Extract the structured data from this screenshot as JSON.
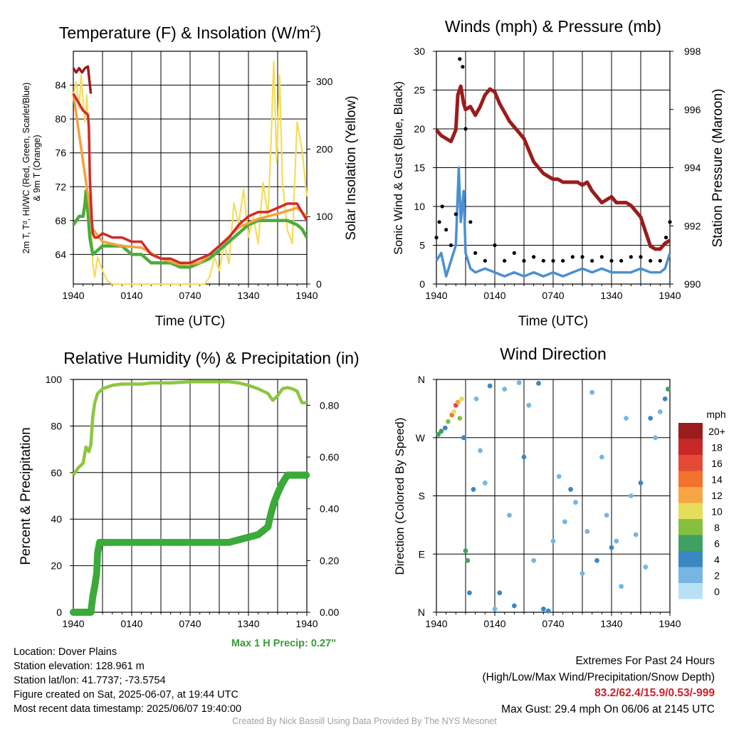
{
  "colors": {
    "temp": "#d12a2a",
    "heat_index": "#4aad3a",
    "wind_chill": "#3a6fd1",
    "temp9": "#f4a23a",
    "insolation": "#f5dc5a",
    "pressure": "#9b1c1c",
    "wind": "#4a90d0",
    "gust": "#000000",
    "rh": "#8cc63f",
    "precip": "#3aaa3a",
    "stat_red": "#c8232c",
    "precip_note": "#3a9a3a",
    "credit": "#a0a0a0"
  },
  "chart_data": [
    {
      "type": "line",
      "title": "Temperature (F) & Insolation (W/m2)",
      "title_parts": {
        "main": "Temperature (F) & Insolation (W/m",
        "sup": "2",
        "end": ")"
      },
      "xlabel": "Time (UTC)",
      "ylabel": "2m T, Td, HI/WC (Red, Green, Scarlet/Blue) & 9m T (Orange)",
      "ylabel_lines": [
        "2m T, Tᵈ, HI/WC (Red, Green, Scarlet/Blue)",
        "& 9m T (Orange)"
      ],
      "y2label": "Solar Insolation (Yellow)",
      "x_ticks": [
        "1940",
        "0140",
        "0740",
        "1340",
        "1940"
      ],
      "xlim_hours": [
        0,
        24
      ],
      "ylim": [
        60.5,
        88
      ],
      "y_ticks": [
        "64",
        "68",
        "72",
        "76",
        "80",
        "84"
      ],
      "y2lim": [
        0,
        345
      ],
      "y2_ticks": [
        "0",
        "100",
        "200",
        "300"
      ],
      "series": [
        {
          "key": "temp",
          "x": [
            0,
            0.5,
            1,
            1.5,
            1.6,
            1.7,
            1.9,
            2,
            2.2,
            2.5,
            3,
            4,
            5,
            6,
            7,
            8,
            9,
            10,
            11,
            12,
            13,
            14,
            15,
            16,
            17,
            18,
            19,
            20,
            21,
            22,
            23,
            24
          ],
          "y": [
            83,
            82,
            81,
            80.5,
            79,
            73,
            68,
            66.5,
            66,
            66,
            66.5,
            66,
            66,
            65.5,
            65.5,
            64,
            63.5,
            63.5,
            63,
            63,
            63.5,
            64,
            65,
            66,
            67.5,
            68.5,
            69,
            69,
            69.5,
            70,
            70,
            68
          ]
        },
        {
          "key": "temp_early",
          "x": [
            0,
            0.3,
            0.6,
            0.9,
            1.2,
            1.5,
            1.8
          ],
          "y": [
            86,
            85.5,
            86,
            85.5,
            86,
            86.2,
            83
          ]
        },
        {
          "key": "temp9",
          "x": [
            0,
            2,
            3,
            5,
            7,
            9,
            11,
            13,
            15,
            17,
            19,
            21,
            23,
            24
          ],
          "y": [
            83,
            67,
            65.5,
            65,
            64.8,
            63.5,
            62.8,
            63,
            65,
            67.2,
            68.2,
            68.8,
            69.5,
            68.5
          ]
        },
        {
          "key": "heat_index",
          "x": [
            0,
            0.3,
            0.6,
            1,
            1.2,
            1.3,
            1.5,
            1.7,
            2,
            2.5,
            3,
            4,
            5,
            6,
            7,
            8,
            9,
            10,
            11,
            12,
            13,
            14,
            15,
            16,
            17,
            18,
            19,
            20,
            21,
            22,
            23,
            23.5,
            24
          ],
          "y": [
            67.5,
            68,
            68.5,
            68.5,
            70,
            71.5,
            69,
            66,
            64,
            64.5,
            65,
            65,
            65,
            64,
            64,
            63,
            63,
            63,
            62.5,
            62.5,
            63,
            63.5,
            64.5,
            65.5,
            66.5,
            67.5,
            68,
            68,
            68,
            68,
            67.5,
            67,
            66
          ]
        },
        {
          "key": "insolation",
          "x": [
            0,
            0.3,
            0.6,
            0.8,
            1,
            1.2,
            1.4,
            1.6,
            1.8,
            2,
            2.2,
            2.5,
            3,
            3.5,
            4,
            5,
            6,
            8,
            10,
            12,
            13.5,
            14,
            14.5,
            15,
            15.5,
            16,
            16.5,
            17,
            17.5,
            18,
            18.5,
            19,
            19.5,
            20,
            20.3,
            20.6,
            20.9,
            21.2,
            21.5,
            22,
            22.5,
            23,
            23.5,
            24
          ],
          "y": [
            280,
            300,
            260,
            310,
            270,
            240,
            280,
            200,
            120,
            30,
            10,
            40,
            20,
            5,
            0,
            0,
            0,
            0,
            0,
            0,
            0,
            10,
            40,
            20,
            60,
            30,
            120,
            90,
            140,
            70,
            100,
            60,
            150,
            100,
            200,
            330,
            180,
            310,
            150,
            80,
            60,
            240,
            200,
            130
          ]
        }
      ]
    },
    {
      "type": "line",
      "title": "Winds (mph) & Pressure (mb)",
      "xlabel": "Time (UTC)",
      "ylabel": "Sonic Wind & Gust (Blue, Black)",
      "y2label": "Station Pressure (Maroon)",
      "x_ticks": [
        "1940",
        "0140",
        "0740",
        "1340",
        "1940"
      ],
      "xlim_hours": [
        0,
        24
      ],
      "ylim": [
        0,
        30
      ],
      "y_ticks": [
        "0",
        "5",
        "10",
        "15",
        "20",
        "25",
        "30"
      ],
      "y2lim": [
        990,
        998
      ],
      "y2_ticks": [
        "990",
        "992",
        "994",
        "996",
        "998"
      ],
      "series": [
        {
          "key": "pressure",
          "x": [
            0,
            0.5,
            1,
            1.5,
            2,
            2.2,
            2.5,
            2.8,
            3,
            3.5,
            4,
            4.5,
            5,
            5.5,
            6,
            6.5,
            7,
            7.5,
            8,
            8.5,
            9,
            9.5,
            10,
            10.5,
            11,
            11.5,
            12,
            12.5,
            13,
            13.5,
            14,
            14.5,
            15,
            15.5,
            16,
            16.5,
            17,
            17.5,
            18,
            18.5,
            19,
            19.5,
            20,
            20.5,
            21,
            21.5,
            22,
            22.5,
            23,
            23.5,
            24
          ],
          "y": [
            995.3,
            995.1,
            995.0,
            994.9,
            995.3,
            996.5,
            996.8,
            996.2,
            996.0,
            996.1,
            995.8,
            996.1,
            996.5,
            996.7,
            996.6,
            996.2,
            995.9,
            995.6,
            995.4,
            995.2,
            995.0,
            994.6,
            994.2,
            994.0,
            993.8,
            993.7,
            993.6,
            993.6,
            993.5,
            993.5,
            993.5,
            993.5,
            993.4,
            993.5,
            993.2,
            993.0,
            992.8,
            992.9,
            993.0,
            992.8,
            992.8,
            992.8,
            992.7,
            992.5,
            992.3,
            991.8,
            991.3,
            991.2,
            991.2,
            991.4,
            991.5
          ]
        },
        {
          "key": "wind",
          "x": [
            0,
            0.5,
            1,
            1.5,
            2,
            2.3,
            2.5,
            2.8,
            3,
            3.5,
            4,
            5,
            6,
            7,
            8,
            9,
            10,
            11,
            12,
            13,
            14,
            15,
            16,
            17,
            18,
            19,
            20,
            21,
            22,
            23,
            23.5,
            24
          ],
          "y": [
            3,
            4,
            1,
            3,
            5,
            15,
            8,
            12,
            4,
            2,
            1.5,
            2,
            1.5,
            1,
            1.5,
            1,
            1.5,
            1,
            1.5,
            1,
            1.5,
            2,
            1.5,
            2,
            1.5,
            1.5,
            1.5,
            2,
            1.5,
            1.5,
            2,
            4
          ]
        },
        {
          "key": "gust_dots",
          "x": [
            0,
            0.3,
            0.6,
            1,
            1.5,
            2,
            2.4,
            2.7,
            3,
            3.5,
            4,
            5,
            6,
            7,
            8,
            9,
            10,
            11,
            12,
            13,
            14,
            15,
            16,
            17,
            18,
            19,
            20,
            21,
            22,
            23,
            23.6,
            24
          ],
          "y": [
            6,
            8,
            10,
            7,
            5,
            9,
            29,
            28,
            20,
            8,
            4,
            3,
            5,
            3,
            4,
            3,
            3.5,
            3,
            3,
            3,
            3.5,
            3.5,
            3,
            3.5,
            3,
            3,
            3.5,
            3.5,
            3,
            3,
            6,
            8
          ]
        }
      ]
    },
    {
      "type": "line",
      "title": "Relative Humidity (%) & Precipitation (in)",
      "ylabel": "Percent & Precipitation",
      "x_ticks": [
        "1940",
        "0140",
        "0740",
        "1340",
        "1940"
      ],
      "xlim_hours": [
        0,
        24
      ],
      "ylim": [
        0,
        100
      ],
      "y_ticks": [
        "0",
        "20",
        "40",
        "60",
        "80",
        "100"
      ],
      "y2lim": [
        0,
        0.9
      ],
      "y2_ticks": [
        "0.00",
        "0.20",
        "0.40",
        "0.60",
        "0.80"
      ],
      "series": [
        {
          "key": "rh",
          "x": [
            0,
            0.5,
            1,
            1.3,
            1.6,
            1.8,
            2,
            2.2,
            2.5,
            3,
            4,
            5,
            6,
            7,
            8,
            10,
            12,
            14,
            16,
            17,
            18,
            19,
            20,
            20.5,
            21,
            21.5,
            22,
            22.5,
            23,
            23.5,
            24
          ],
          "y": [
            59,
            62,
            64,
            71,
            69,
            72,
            84,
            90,
            94,
            96,
            97.5,
            98,
            98,
            98,
            98.5,
            98.5,
            99,
            99,
            99,
            98.5,
            97.5,
            96,
            94,
            91,
            93,
            96,
            96.5,
            96,
            95,
            90,
            90
          ]
        },
        {
          "key": "precip_dots",
          "x": [
            0,
            0.5,
            1,
            1.5,
            1.8,
            2,
            2.2,
            2.4,
            2.5,
            2.7,
            3,
            4,
            6,
            8,
            10,
            12,
            14,
            16,
            17,
            18,
            19,
            20,
            20.3,
            20.6,
            21,
            21.5,
            22,
            22.5,
            23,
            23.5,
            24
          ],
          "y": [
            0,
            0,
            0,
            0,
            0,
            0.06,
            0.1,
            0.15,
            0.23,
            0.27,
            0.27,
            0.27,
            0.27,
            0.27,
            0.27,
            0.27,
            0.27,
            0.27,
            0.28,
            0.29,
            0.3,
            0.33,
            0.38,
            0.42,
            0.46,
            0.5,
            0.53,
            0.53,
            0.53,
            0.53,
            0.53
          ]
        }
      ]
    },
    {
      "type": "scatter",
      "title": "Wind Direction",
      "xlabel": "",
      "ylabel": "Direction (Colored By Speed)",
      "x_ticks": [
        "1940",
        "0140",
        "0740",
        "1340",
        "1940"
      ],
      "xlim_hours": [
        0,
        24
      ],
      "y_ticks": [
        "N",
        "E",
        "S",
        "W",
        "N"
      ],
      "ylim_degrees": [
        0,
        360
      ],
      "legend_title": "mph",
      "legend_labels": [
        "20+",
        "18",
        "16",
        "14",
        "12",
        "10",
        "8",
        "6",
        "4",
        "2",
        "0"
      ],
      "legend_colors": [
        "#9b1c1c",
        "#c82828",
        "#e24a36",
        "#f2722e",
        "#f6a645",
        "#e6de5a",
        "#86c041",
        "#3fa161",
        "#3b87c4",
        "#77b6e2",
        "#b8e2f4"
      ],
      "points": [
        {
          "x": 0.2,
          "y": 275,
          "s": 6
        },
        {
          "x": 0.5,
          "y": 280,
          "s": 6
        },
        {
          "x": 0.9,
          "y": 285,
          "s": 4
        },
        {
          "x": 1.2,
          "y": 295,
          "s": 8
        },
        {
          "x": 1.6,
          "y": 305,
          "s": 14
        },
        {
          "x": 1.8,
          "y": 310,
          "s": 10
        },
        {
          "x": 2.0,
          "y": 320,
          "s": 16
        },
        {
          "x": 2.2,
          "y": 325,
          "s": 12
        },
        {
          "x": 2.4,
          "y": 300,
          "s": 8
        },
        {
          "x": 2.6,
          "y": 330,
          "s": 10
        },
        {
          "x": 2.8,
          "y": 270,
          "s": 4
        },
        {
          "x": 3.0,
          "y": 95,
          "s": 6
        },
        {
          "x": 3.2,
          "y": 80,
          "s": 6
        },
        {
          "x": 3.4,
          "y": 30,
          "s": 4
        },
        {
          "x": 3.8,
          "y": 190,
          "s": 4
        },
        {
          "x": 4.1,
          "y": 330,
          "s": 2
        },
        {
          "x": 4.5,
          "y": 250,
          "s": 2
        },
        {
          "x": 5.0,
          "y": 200,
          "s": 2
        },
        {
          "x": 5.5,
          "y": 350,
          "s": 4
        },
        {
          "x": 6.0,
          "y": 5,
          "s": 2
        },
        {
          "x": 6.5,
          "y": 30,
          "s": 4
        },
        {
          "x": 7.0,
          "y": 345,
          "s": 2
        },
        {
          "x": 7.5,
          "y": 150,
          "s": 2
        },
        {
          "x": 8.0,
          "y": 10,
          "s": 4
        },
        {
          "x": 8.5,
          "y": 355,
          "s": 2
        },
        {
          "x": 9.0,
          "y": 240,
          "s": 4
        },
        {
          "x": 9.5,
          "y": 320,
          "s": 2
        },
        {
          "x": 10.0,
          "y": 80,
          "s": 2
        },
        {
          "x": 10.5,
          "y": 354,
          "s": 4
        },
        {
          "x": 11.0,
          "y": 5,
          "s": 4
        },
        {
          "x": 11.5,
          "y": 2,
          "s": 4
        },
        {
          "x": 12.0,
          "y": 110,
          "s": 2
        },
        {
          "x": 12.6,
          "y": 210,
          "s": 2
        },
        {
          "x": 13.2,
          "y": 140,
          "s": 2
        },
        {
          "x": 13.8,
          "y": 190,
          "s": 4
        },
        {
          "x": 14.3,
          "y": 170,
          "s": 2
        },
        {
          "x": 15.0,
          "y": 60,
          "s": 2
        },
        {
          "x": 15.5,
          "y": 125,
          "s": 2
        },
        {
          "x": 16.0,
          "y": 340,
          "s": 2
        },
        {
          "x": 16.5,
          "y": 80,
          "s": 4
        },
        {
          "x": 17.0,
          "y": 240,
          "s": 2
        },
        {
          "x": 17.5,
          "y": 150,
          "s": 2
        },
        {
          "x": 18.0,
          "y": 100,
          "s": 4
        },
        {
          "x": 18.5,
          "y": 110,
          "s": 2
        },
        {
          "x": 19.0,
          "y": 40,
          "s": 2
        },
        {
          "x": 19.5,
          "y": 300,
          "s": 2
        },
        {
          "x": 20.0,
          "y": 180,
          "s": 2
        },
        {
          "x": 20.5,
          "y": 120,
          "s": 2
        },
        {
          "x": 21.0,
          "y": 200,
          "s": 4
        },
        {
          "x": 21.5,
          "y": 70,
          "s": 2
        },
        {
          "x": 22.0,
          "y": 300,
          "s": 4
        },
        {
          "x": 22.5,
          "y": 270,
          "s": 2
        },
        {
          "x": 23.0,
          "y": 310,
          "s": 2
        },
        {
          "x": 23.5,
          "y": 330,
          "s": 4
        },
        {
          "x": 23.8,
          "y": 345,
          "s": 6
        }
      ]
    }
  ],
  "precip_note": "Max 1 H Precip: 0.27''",
  "info": {
    "location": "Location: Dover Plains",
    "elevation": "Station elevation: 128.961 m",
    "latlon": "Station lat/lon: 41.7737; -73.5754",
    "created": "Figure created on Sat, 2025-06-07, at 19:44 UTC",
    "recent": "Most recent data timestamp: 2025/06/07 19:40:00"
  },
  "extremes": {
    "title": "Extremes For Past 24 Hours",
    "subtitle": "(High/Low/Max Wind/Precipitation/Snow Depth)",
    "values": "83.2/62.4/15.9/0.53/-999",
    "gust": "Max Gust: 29.4 mph On 06/06 at 2145 UTC"
  },
  "credit": "Created By Nick Bassill Using Data Provided By The NYS Mesonet"
}
